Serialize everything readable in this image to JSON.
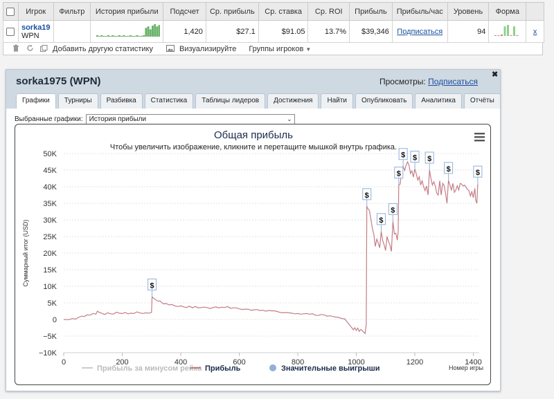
{
  "table": {
    "headers": [
      "Игрок",
      "Фильтр",
      "История прибыли",
      "Подсчет",
      "Ср. прибыль",
      "Ср. ставка",
      "Ср. ROI",
      "Прибыль",
      "Прибыль/час",
      "Уровень",
      "Форма"
    ],
    "row": {
      "player": "sorka19",
      "network": "WPN",
      "count": "1,420",
      "avg_profit": "$27.1",
      "avg_stake": "$91.05",
      "avg_roi": "13.7%",
      "profit": "$39,346",
      "profit_per_hour": "Подписаться",
      "level": "94",
      "remove": "x"
    }
  },
  "toolbar": {
    "trash_icon": "trash-icon",
    "refresh_icon": "refresh-icon",
    "add_stat_icon": "add-icon",
    "add_stat": "Добавить другую статистику",
    "visualize_icon": "image-icon",
    "visualize": "Визуализируйте",
    "groups": "Группы игроков"
  },
  "popup": {
    "title": "sorka1975 (WPN)",
    "views_label": "Просмотры:",
    "views_link": "Подписаться",
    "close": "✖",
    "tabs": [
      "Графики",
      "Турниры",
      "Разбивка",
      "Статистика",
      "Таблицы лидеров",
      "Достижения",
      "Найти",
      "Опубликовать",
      "Аналитика",
      "Отчёты"
    ],
    "active_tab": 0,
    "select_label": "Выбранные графики:",
    "select_value": "История прибыли"
  },
  "chart_data": {
    "type": "line",
    "title": "Общая прибыль",
    "subtitle": "Чтобы увеличить изображение, кликните и перетащите мышкой внутрь графика.",
    "xlabel": "Номер игры",
    "ylabel": "Суммарный итог (USD)",
    "xlim": [
      0,
      1420
    ],
    "ylim": [
      -10000,
      50000
    ],
    "x_ticks": [
      0,
      200,
      400,
      600,
      800,
      1000,
      1200,
      1400
    ],
    "y_ticks": [
      -10000,
      -5000,
      0,
      5000,
      10000,
      15000,
      20000,
      25000,
      30000,
      35000,
      40000,
      45000,
      50000
    ],
    "y_tick_labels": [
      "−10K",
      "−5K",
      "0",
      "5K",
      "10K",
      "15K",
      "20K",
      "25K",
      "30K",
      "35K",
      "40K",
      "45K",
      "50K"
    ],
    "grid": true,
    "legend_position": "bottom",
    "legend": [
      {
        "name": "Прибыль за минусом рейка",
        "color": "#cccccc",
        "enabled": false
      },
      {
        "name": "Прибыль",
        "color": "#c47c86",
        "enabled": true
      },
      {
        "name": "Значительные выигрыши",
        "color": "#8fb0da",
        "enabled": true,
        "marker": "circle"
      }
    ],
    "series": [
      {
        "name": "Прибыль",
        "color": "#c47c86",
        "points": [
          [
            0,
            0
          ],
          [
            10,
            -50
          ],
          [
            20,
            0
          ],
          [
            30,
            300
          ],
          [
            40,
            100
          ],
          [
            50,
            600
          ],
          [
            60,
            1000
          ],
          [
            70,
            900
          ],
          [
            80,
            1400
          ],
          [
            90,
            1300
          ],
          [
            100,
            1800
          ],
          [
            110,
            1600
          ],
          [
            115,
            2500
          ],
          [
            120,
            2200
          ],
          [
            130,
            1900
          ],
          [
            140,
            1500
          ],
          [
            150,
            2000
          ],
          [
            160,
            1700
          ],
          [
            170,
            1600
          ],
          [
            180,
            2200
          ],
          [
            190,
            1900
          ],
          [
            200,
            1800
          ],
          [
            210,
            2100
          ],
          [
            220,
            1700
          ],
          [
            230,
            1900
          ],
          [
            240,
            1800
          ],
          [
            250,
            2300
          ],
          [
            260,
            2000
          ],
          [
            270,
            1800
          ],
          [
            280,
            2000
          ],
          [
            290,
            1900
          ],
          [
            300,
            2100
          ],
          [
            302,
            6800
          ],
          [
            310,
            6200
          ],
          [
            320,
            5600
          ],
          [
            330,
            5500
          ],
          [
            340,
            4700
          ],
          [
            350,
            4800
          ],
          [
            360,
            4400
          ],
          [
            370,
            4500
          ],
          [
            380,
            4100
          ],
          [
            390,
            3900
          ],
          [
            400,
            4100
          ],
          [
            410,
            3800
          ],
          [
            420,
            3600
          ],
          [
            430,
            4000
          ],
          [
            440,
            3500
          ],
          [
            450,
            3900
          ],
          [
            460,
            3500
          ],
          [
            470,
            3600
          ],
          [
            480,
            3700
          ],
          [
            490,
            3600
          ],
          [
            500,
            3300
          ],
          [
            510,
            3600
          ],
          [
            520,
            3800
          ],
          [
            530,
            3500
          ],
          [
            540,
            3700
          ],
          [
            550,
            3600
          ],
          [
            560,
            3900
          ],
          [
            570,
            3400
          ],
          [
            580,
            3500
          ],
          [
            590,
            3500
          ],
          [
            600,
            3200
          ],
          [
            610,
            3000
          ],
          [
            620,
            3100
          ],
          [
            630,
            3100
          ],
          [
            640,
            2800
          ],
          [
            650,
            2900
          ],
          [
            660,
            3000
          ],
          [
            670,
            2700
          ],
          [
            680,
            2800
          ],
          [
            690,
            2500
          ],
          [
            700,
            2700
          ],
          [
            710,
            2600
          ],
          [
            720,
            2600
          ],
          [
            730,
            2400
          ],
          [
            740,
            2100
          ],
          [
            750,
            2000
          ],
          [
            760,
            2100
          ],
          [
            770,
            2000
          ],
          [
            780,
            1900
          ],
          [
            790,
            1700
          ],
          [
            800,
            1800
          ],
          [
            810,
            1600
          ],
          [
            820,
            1700
          ],
          [
            830,
            1800
          ],
          [
            840,
            1600
          ],
          [
            850,
            1700
          ],
          [
            860,
            1300
          ],
          [
            870,
            1200
          ],
          [
            880,
            1500
          ],
          [
            890,
            1400
          ],
          [
            900,
            1000
          ],
          [
            910,
            1100
          ],
          [
            920,
            900
          ],
          [
            930,
            700
          ],
          [
            940,
            600
          ],
          [
            950,
            300
          ],
          [
            960,
            200
          ],
          [
            970,
            -900
          ],
          [
            980,
            -2000
          ],
          [
            990,
            -3100
          ],
          [
            995,
            -2500
          ],
          [
            1000,
            -3300
          ],
          [
            1005,
            -2600
          ],
          [
            1010,
            -3600
          ],
          [
            1015,
            -3000
          ],
          [
            1020,
            -3300
          ],
          [
            1025,
            -3800
          ],
          [
            1030,
            -4200
          ],
          [
            1034,
            -1500
          ],
          [
            1036,
            34000
          ],
          [
            1040,
            33400
          ],
          [
            1045,
            32800
          ],
          [
            1050,
            30000
          ],
          [
            1055,
            27400
          ],
          [
            1060,
            25500
          ],
          [
            1065,
            22000
          ],
          [
            1070,
            24200
          ],
          [
            1075,
            23000
          ],
          [
            1080,
            21600
          ],
          [
            1085,
            26500
          ],
          [
            1090,
            23800
          ],
          [
            1095,
            22500
          ],
          [
            1100,
            20800
          ],
          [
            1105,
            25000
          ],
          [
            1110,
            23500
          ],
          [
            1115,
            22500
          ],
          [
            1120,
            20500
          ],
          [
            1125,
            29500
          ],
          [
            1130,
            25800
          ],
          [
            1135,
            26000
          ],
          [
            1140,
            23900
          ],
          [
            1143,
            26500
          ],
          [
            1145,
            40500
          ],
          [
            1150,
            40800
          ],
          [
            1155,
            45000
          ],
          [
            1160,
            46100
          ],
          [
            1165,
            44900
          ],
          [
            1170,
            46500
          ],
          [
            1175,
            47500
          ],
          [
            1180,
            46500
          ],
          [
            1185,
            44000
          ],
          [
            1190,
            44800
          ],
          [
            1195,
            42900
          ],
          [
            1200,
            45300
          ],
          [
            1205,
            43800
          ],
          [
            1210,
            42000
          ],
          [
            1215,
            43000
          ],
          [
            1220,
            40500
          ],
          [
            1225,
            41800
          ],
          [
            1230,
            40000
          ],
          [
            1235,
            38800
          ],
          [
            1240,
            40200
          ],
          [
            1245,
            37500
          ],
          [
            1250,
            45000
          ],
          [
            1255,
            42500
          ],
          [
            1260,
            40500
          ],
          [
            1265,
            41500
          ],
          [
            1270,
            40200
          ],
          [
            1275,
            38000
          ],
          [
            1280,
            37500
          ],
          [
            1285,
            41800
          ],
          [
            1290,
            37500
          ],
          [
            1295,
            41000
          ],
          [
            1300,
            40500
          ],
          [
            1305,
            38000
          ],
          [
            1310,
            35000
          ],
          [
            1315,
            41900
          ],
          [
            1320,
            40500
          ],
          [
            1325,
            39000
          ],
          [
            1330,
            41000
          ],
          [
            1335,
            38300
          ],
          [
            1340,
            39000
          ],
          [
            1345,
            40300
          ],
          [
            1350,
            39000
          ],
          [
            1355,
            41000
          ],
          [
            1360,
            40800
          ],
          [
            1365,
            40200
          ],
          [
            1370,
            40500
          ],
          [
            1375,
            39800
          ],
          [
            1380,
            39200
          ],
          [
            1385,
            38800
          ],
          [
            1390,
            37200
          ],
          [
            1395,
            38500
          ],
          [
            1400,
            36700
          ],
          [
            1405,
            39500
          ],
          [
            1408,
            36000
          ],
          [
            1412,
            35000
          ],
          [
            1415,
            40800
          ]
        ]
      }
    ],
    "big_wins": [
      {
        "x": 302,
        "y": 6800,
        "label": "$"
      },
      {
        "x": 1036,
        "y": 34000,
        "label": "$"
      },
      {
        "x": 1085,
        "y": 26500,
        "label": "$"
      },
      {
        "x": 1125,
        "y": 29500,
        "label": "$"
      },
      {
        "x": 1145,
        "y": 40500,
        "label": "$"
      },
      {
        "x": 1160,
        "y": 46100,
        "label": "$"
      },
      {
        "x": 1200,
        "y": 45300,
        "label": "$"
      },
      {
        "x": 1250,
        "y": 45000,
        "label": "$"
      },
      {
        "x": 1315,
        "y": 41900,
        "label": "$"
      },
      {
        "x": 1415,
        "y": 40800,
        "label": "$"
      }
    ]
  },
  "sparkline": {
    "color": "#6bb36b",
    "bars": [
      2,
      1,
      2,
      1,
      1,
      2,
      1,
      2,
      1,
      1,
      2,
      1,
      2,
      1,
      1,
      2,
      1,
      1,
      2,
      1,
      1,
      2,
      12,
      14,
      10,
      15,
      17,
      14,
      16,
      13
    ],
    "form_bars": [
      1,
      1,
      2,
      13,
      15,
      1,
      13,
      1
    ]
  }
}
